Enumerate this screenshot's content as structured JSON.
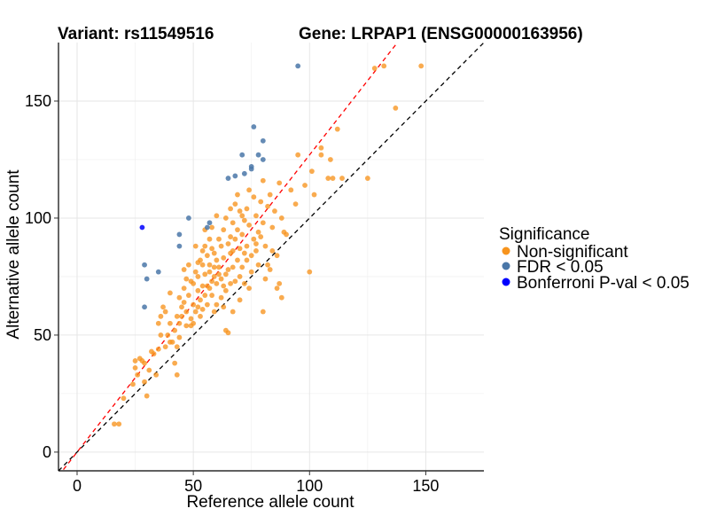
{
  "titles": {
    "variant": "Variant: rs11549516",
    "gene": "Gene: LRPAP1 (ENSG00000163956)"
  },
  "legend": {
    "title": "Significance",
    "items": [
      {
        "label": "Non-significant",
        "color": "#f7941d"
      },
      {
        "label": "FDR < 0.05",
        "color": "#4a77a8"
      },
      {
        "label": "Bonferroni P-val < 0.05",
        "color": "#0000ff"
      }
    ]
  },
  "chart_data": {
    "type": "scatter",
    "xlabel": "Reference allele count",
    "ylabel": "Alternative allele count",
    "xlim": [
      -8,
      175
    ],
    "ylim": [
      -8,
      175
    ],
    "xticks": [
      0,
      50,
      100,
      150
    ],
    "yticks": [
      0,
      50,
      100,
      150
    ],
    "grid": true,
    "legend_position": "right",
    "reference_lines": [
      {
        "name": "y = x",
        "slope": 1.0,
        "intercept": 0,
        "color": "#000000",
        "dash": true
      },
      {
        "name": "fit",
        "slope": 1.27,
        "intercept": 0,
        "color": "#ff0000",
        "dash": true
      }
    ],
    "series": [
      {
        "name": "Non-significant",
        "color": "#f7941d",
        "points": [
          [
            16,
            12
          ],
          [
            18,
            12
          ],
          [
            20,
            23
          ],
          [
            24,
            29
          ],
          [
            25,
            36
          ],
          [
            25,
            39
          ],
          [
            26,
            33
          ],
          [
            27,
            40
          ],
          [
            28,
            39
          ],
          [
            29,
            38
          ],
          [
            29,
            30
          ],
          [
            30,
            24
          ],
          [
            31,
            35
          ],
          [
            32,
            43
          ],
          [
            33,
            42
          ],
          [
            34,
            33
          ],
          [
            35,
            44
          ],
          [
            35,
            55
          ],
          [
            36,
            58
          ],
          [
            36,
            50
          ],
          [
            37,
            62
          ],
          [
            38,
            60
          ],
          [
            38,
            45
          ],
          [
            39,
            50
          ],
          [
            40,
            55
          ],
          [
            40,
            47
          ],
          [
            41,
            47
          ],
          [
            42,
            52
          ],
          [
            42,
            38
          ],
          [
            43,
            45
          ],
          [
            43,
            33
          ],
          [
            44,
            55
          ],
          [
            44,
            49
          ],
          [
            45,
            62
          ],
          [
            45,
            58
          ],
          [
            46,
            70
          ],
          [
            46,
            64
          ],
          [
            47,
            74
          ],
          [
            47,
            54
          ],
          [
            48,
            80
          ],
          [
            48,
            67
          ],
          [
            49,
            73
          ],
          [
            49,
            57
          ],
          [
            49,
            54
          ],
          [
            50,
            55
          ],
          [
            50,
            63
          ],
          [
            50,
            72
          ],
          [
            51,
            77
          ],
          [
            51,
            88
          ],
          [
            52,
            62
          ],
          [
            52,
            69
          ],
          [
            52,
            75
          ],
          [
            53,
            82
          ],
          [
            53,
            65
          ],
          [
            53,
            58
          ],
          [
            54,
            86
          ],
          [
            54,
            80
          ],
          [
            54,
            71
          ],
          [
            54,
            61
          ],
          [
            55,
            88
          ],
          [
            55,
            76
          ],
          [
            55,
            67
          ],
          [
            56,
            84
          ],
          [
            56,
            71
          ],
          [
            56,
            63
          ],
          [
            57,
            91
          ],
          [
            57,
            77
          ],
          [
            57,
            80
          ],
          [
            58,
            96
          ],
          [
            58,
            73
          ],
          [
            58,
            67
          ],
          [
            59,
            85
          ],
          [
            59,
            75
          ],
          [
            59,
            60
          ],
          [
            60,
            101
          ],
          [
            60,
            82
          ],
          [
            60,
            72
          ],
          [
            60,
            63
          ],
          [
            61,
            91
          ],
          [
            61,
            79
          ],
          [
            62,
            88
          ],
          [
            62,
            74
          ],
          [
            62,
            66
          ],
          [
            63,
            95
          ],
          [
            63,
            83
          ],
          [
            63,
            71
          ],
          [
            64,
            52
          ],
          [
            64,
            100
          ],
          [
            65,
            89
          ],
          [
            65,
            78
          ],
          [
            65,
            51
          ],
          [
            66,
            104
          ],
          [
            66,
            85
          ],
          [
            66,
            72
          ],
          [
            67,
            98
          ],
          [
            67,
            86
          ],
          [
            67,
            79
          ],
          [
            68,
            106
          ],
          [
            68,
            91
          ],
          [
            68,
            73
          ],
          [
            69,
            95
          ],
          [
            69,
            82
          ],
          [
            70,
            103
          ],
          [
            70,
            87
          ],
          [
            70,
            75
          ],
          [
            71,
            93
          ],
          [
            71,
            79
          ],
          [
            72,
            99
          ],
          [
            72,
            85
          ],
          [
            72,
            72
          ],
          [
            73,
            104
          ],
          [
            73,
            88
          ],
          [
            74,
            112
          ],
          [
            74,
            97
          ],
          [
            75,
            84
          ],
          [
            76,
            109
          ],
          [
            76,
            91
          ],
          [
            77,
            101
          ],
          [
            77,
            86
          ],
          [
            78,
            80
          ],
          [
            79,
            107
          ],
          [
            79,
            92
          ],
          [
            80,
            116
          ],
          [
            80,
            98
          ],
          [
            81,
            88
          ],
          [
            81,
            74
          ],
          [
            82,
            105
          ],
          [
            82,
            80
          ],
          [
            83,
            110
          ],
          [
            84,
            96
          ],
          [
            84,
            86
          ],
          [
            85,
            103
          ],
          [
            86,
            70
          ],
          [
            87,
            115
          ],
          [
            87,
            72
          ],
          [
            88,
            66
          ],
          [
            89,
            94
          ],
          [
            90,
            93
          ],
          [
            92,
            112
          ],
          [
            94,
            106
          ],
          [
            95,
            127
          ],
          [
            98,
            114
          ],
          [
            100,
            77
          ],
          [
            101,
            120
          ],
          [
            102,
            110
          ],
          [
            105,
            127
          ],
          [
            105,
            130
          ],
          [
            108,
            117
          ],
          [
            109,
            125
          ],
          [
            110,
            117
          ],
          [
            112,
            138
          ],
          [
            114,
            117
          ],
          [
            125,
            117
          ],
          [
            128,
            164
          ],
          [
            132,
            165
          ],
          [
            137,
            147
          ],
          [
            148,
            165
          ],
          [
            40,
            68
          ],
          [
            43,
            58
          ],
          [
            44,
            66
          ],
          [
            46,
            78
          ],
          [
            47,
            60
          ],
          [
            51,
            60
          ],
          [
            52,
            81
          ],
          [
            55,
            95
          ],
          [
            58,
            87
          ],
          [
            61,
            76
          ],
          [
            63,
            62
          ],
          [
            64,
            76
          ],
          [
            66,
            92
          ],
          [
            69,
            110
          ],
          [
            71,
            101
          ],
          [
            73,
            82
          ],
          [
            75,
            77
          ],
          [
            78,
            94
          ],
          [
            80,
            60
          ],
          [
            83,
            78
          ],
          [
            86,
            84
          ],
          [
            88,
            100
          ],
          [
            57,
            70
          ],
          [
            59,
            79
          ],
          [
            64,
            69
          ],
          [
            67,
            60
          ],
          [
            70,
            65
          ],
          [
            74,
            70
          ],
          [
            77,
            89
          ]
        ]
      },
      {
        "name": "FDR < 0.05",
        "color": "#4a77a8",
        "points": [
          [
            29,
            80
          ],
          [
            29,
            62
          ],
          [
            30,
            74
          ],
          [
            35,
            77
          ],
          [
            44,
            88
          ],
          [
            44,
            93
          ],
          [
            48,
            100
          ],
          [
            56,
            96
          ],
          [
            57,
            98
          ],
          [
            65,
            117
          ],
          [
            68,
            118
          ],
          [
            71,
            127
          ],
          [
            72,
            119
          ],
          [
            75,
            121
          ],
          [
            75,
            122
          ],
          [
            78,
            127
          ],
          [
            80,
            125
          ],
          [
            76,
            139
          ],
          [
            80,
            133
          ],
          [
            95,
            165
          ]
        ]
      },
      {
        "name": "Bonferroni P-val < 0.05",
        "color": "#0000ff",
        "points": [
          [
            28,
            96
          ]
        ]
      }
    ]
  }
}
